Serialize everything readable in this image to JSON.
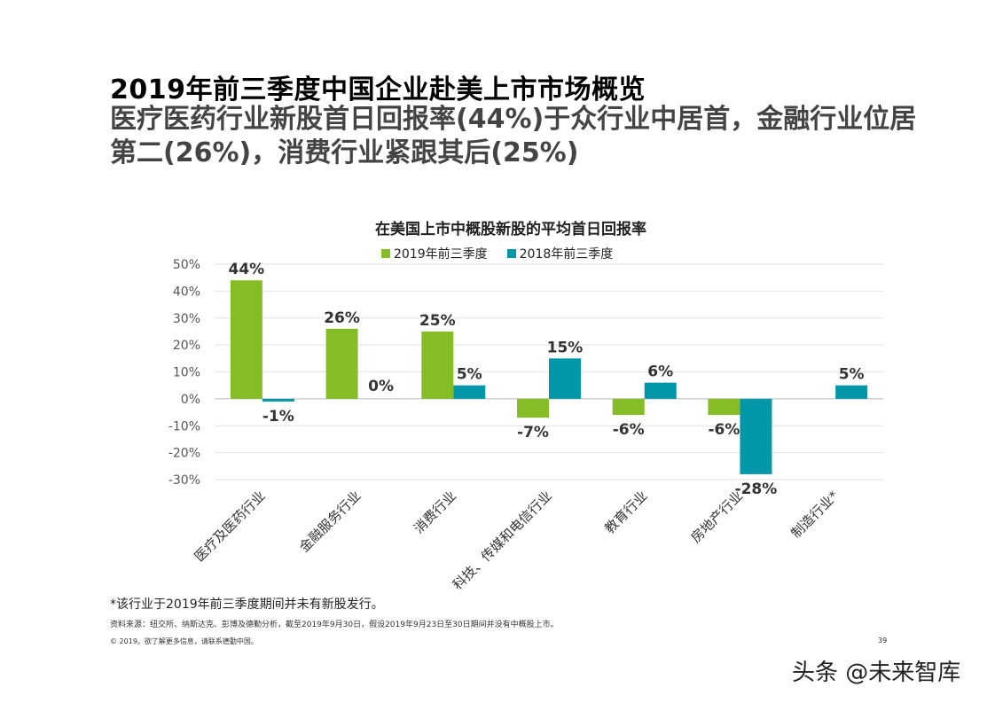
{
  "header": {
    "title": "2019年前三季度中国企业赴美上市市场概览",
    "subtitle": "医疗医药行业新股首日回报率(44%)于众行业中居首，金融行业位居第二(26%)，消费行业紧跟其后(25%)"
  },
  "chart_data": {
    "type": "bar",
    "title": "在美国上市中概股新股的平均首日回报率",
    "categories": [
      "医疗及医药行业",
      "金融服务行业",
      "消费行业",
      "科技、传媒和电信行业",
      "教育行业",
      "房地产行业",
      "制造行业*"
    ],
    "series": [
      {
        "name": "2019年前三季度",
        "color": "#86bc25",
        "values": [
          44,
          26,
          25,
          -7,
          -6,
          -6,
          null
        ],
        "labels": [
          "44%",
          "26%",
          "25%",
          "-7%",
          "-6%",
          "-6%",
          ""
        ]
      },
      {
        "name": "2018年前三季度",
        "color": "#0097a9",
        "values": [
          -1,
          0,
          5,
          15,
          6,
          -28,
          5
        ],
        "labels": [
          "-1%",
          "0%",
          "5%",
          "15%",
          "6%",
          "-28%",
          "5%"
        ]
      }
    ],
    "yticks": [
      "50%",
      "40%",
      "30%",
      "20%",
      "10%",
      "0%",
      "-10%",
      "-20%",
      "-30%"
    ],
    "ylim": [
      -30,
      50
    ],
    "grid": true,
    "legend": "top"
  },
  "footer": {
    "note": "*该行业于2019年前三季度期间并未有新股发行。",
    "source": "资料来源：纽交所、纳斯达克、彭博及德勤分析，截至2019年9月30日，假设2019年9月23日至30日期间并没有中概股上市。",
    "copyright": "© 2019。欲了解更多信息，请联系德勤中国。",
    "page": "39",
    "watermark": "头条 @未来智库"
  }
}
